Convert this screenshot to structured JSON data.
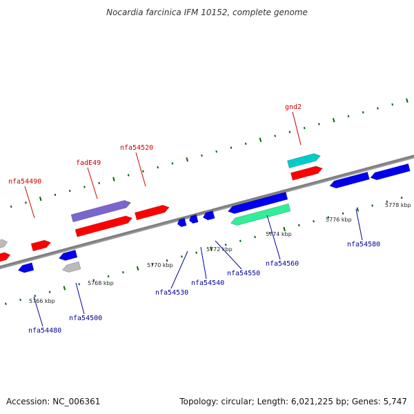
{
  "title": "Nocardia farcinica IFM 10152, complete genome",
  "footer": {
    "accession": "Accession: NC_006361",
    "summary": "Topology: circular; Length: 6,021,225 bp; Genes: 5,747"
  },
  "colors": {
    "forward_label": "#cc0000",
    "reverse_label": "#000099",
    "backbone": "#808080",
    "tick_mark": "#006600",
    "forward_cds": "#ff0000",
    "reverse_cds": "#0000ee",
    "rna": "#00cccc",
    "pseudo": "#bbbbbb",
    "violet": "#7a66cc",
    "green": "#33ee99"
  },
  "scale": {
    "unit": "kbp",
    "ticks": [
      "5766 kbp",
      "5768 kbp",
      "5770 kbp",
      "5772 kbp",
      "5774 kbp",
      "5776 kbp",
      "5778 kbp"
    ]
  },
  "genes": {
    "forward": [
      "nfa54490",
      "fadE49",
      "nfa54520",
      "gnd2"
    ],
    "reverse": [
      "nfa54480",
      "nfa54500",
      "nfa54530",
      "nfa54540",
      "nfa54550",
      "nfa54560",
      "nfa54580"
    ]
  }
}
